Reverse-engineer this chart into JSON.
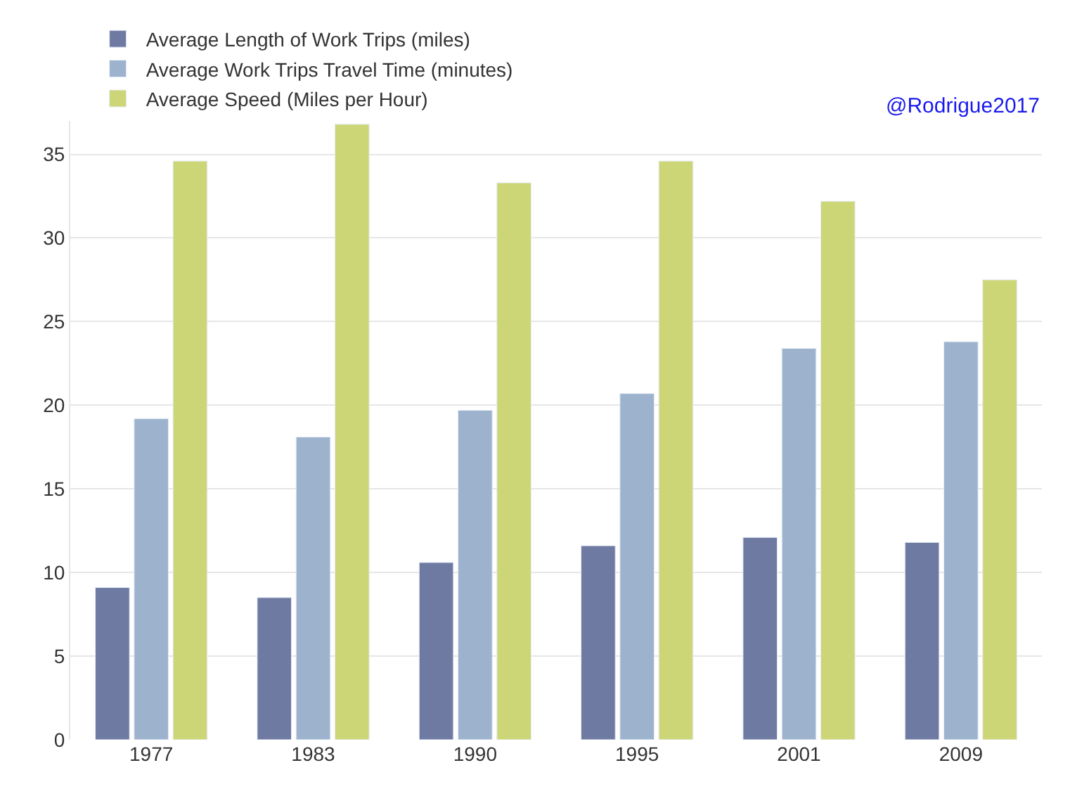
{
  "chart_data": {
    "type": "bar",
    "categories": [
      "1977",
      "1983",
      "1990",
      "1995",
      "2001",
      "2009"
    ],
    "series": [
      {
        "name": "Average Length of Work Trips (miles)",
        "color": "#6e7aa2",
        "values": [
          9.1,
          8.5,
          10.6,
          11.6,
          12.1,
          11.8
        ]
      },
      {
        "name": "Average Work Trips Travel Time (minutes)",
        "color": "#9db3cd",
        "values": [
          19.2,
          18.1,
          19.7,
          20.7,
          23.4,
          23.8
        ]
      },
      {
        "name": "Average Speed (Miles per Hour)",
        "color": "#cdd676",
        "values": [
          34.6,
          36.8,
          33.3,
          34.6,
          32.2,
          27.5
        ]
      }
    ],
    "ylim": [
      0,
      37
    ],
    "yticks": [
      0,
      5,
      10,
      15,
      20,
      25,
      30,
      35
    ],
    "grid": "y",
    "legend": "top",
    "annotations": [
      "@Rodrigue2017"
    ]
  }
}
